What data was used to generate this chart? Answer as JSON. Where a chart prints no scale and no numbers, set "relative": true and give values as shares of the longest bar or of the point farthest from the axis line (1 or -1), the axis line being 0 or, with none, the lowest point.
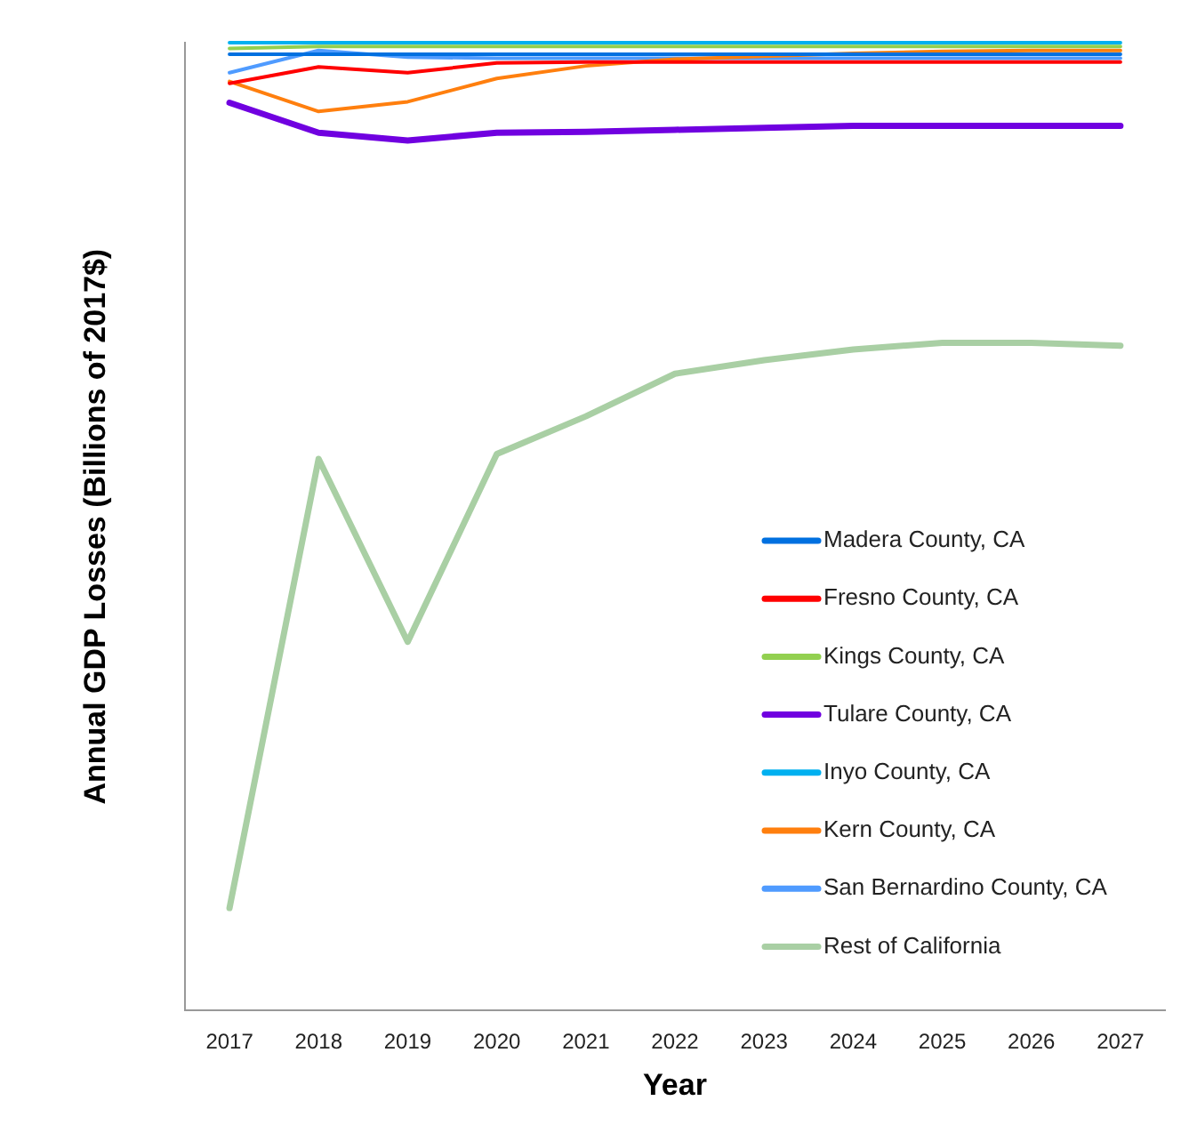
{
  "chart_data": {
    "type": "line",
    "relative": true,
    "xlabel": "Year",
    "ylabel": "Annual GDP Losses (Billions of 2017$)",
    "legend": "bottom right",
    "grid": false,
    "marker": "none",
    "line_style": "solid",
    "categories": [
      "2017",
      "2018",
      "2019",
      "2020",
      "2021",
      "2022",
      "2023",
      "2024",
      "2025",
      "2026",
      "2027"
    ],
    "series": [
      {
        "name": "Madera County, CA",
        "color": "#0070e0",
        "values": [
          0.988,
          0.988,
          0.988,
          0.988,
          0.988,
          0.988,
          0.988,
          0.988,
          0.988,
          0.988,
          0.988
        ]
      },
      {
        "name": "Fresno County, CA",
        "color": "#ff0000",
        "values": [
          0.958,
          0.975,
          0.969,
          0.979,
          0.98,
          0.98,
          0.98,
          0.98,
          0.98,
          0.98,
          0.98
        ]
      },
      {
        "name": "Kings County, CA",
        "color": "#92d050",
        "values": [
          0.994,
          0.996,
          0.996,
          0.996,
          0.996,
          0.996,
          0.996,
          0.996,
          0.996,
          0.996,
          0.996
        ]
      },
      {
        "name": "Tulare County, CA",
        "color": "#7000e0",
        "values": [
          0.938,
          0.907,
          0.899,
          0.907,
          0.908,
          0.91,
          0.912,
          0.914,
          0.914,
          0.914,
          0.914
        ]
      },
      {
        "name": "Inyo County, CA",
        "color": "#00b0f0",
        "values": [
          1,
          1,
          1,
          1,
          1,
          1,
          1,
          1,
          1,
          1,
          1
        ]
      },
      {
        "name": "Kern County, CA",
        "color": "#ff7f0e",
        "values": [
          0.96,
          0.929,
          0.939,
          0.963,
          0.976,
          0.983,
          0.986,
          0.989,
          0.991,
          0.992,
          0.992
        ]
      },
      {
        "name": "San Bernardino County, CA",
        "color": "#4f9bff",
        "values": [
          0.969,
          0.992,
          0.985,
          0.984,
          0.984,
          0.984,
          0.984,
          0.984,
          0.984,
          0.984,
          0.984
        ]
      },
      {
        "name": "Rest of California",
        "color": "#a9cfa4",
        "values": [
          0.106,
          0.57,
          0.381,
          0.575,
          0.614,
          0.658,
          0.672,
          0.683,
          0.69,
          0.69,
          0.687
        ]
      }
    ]
  }
}
